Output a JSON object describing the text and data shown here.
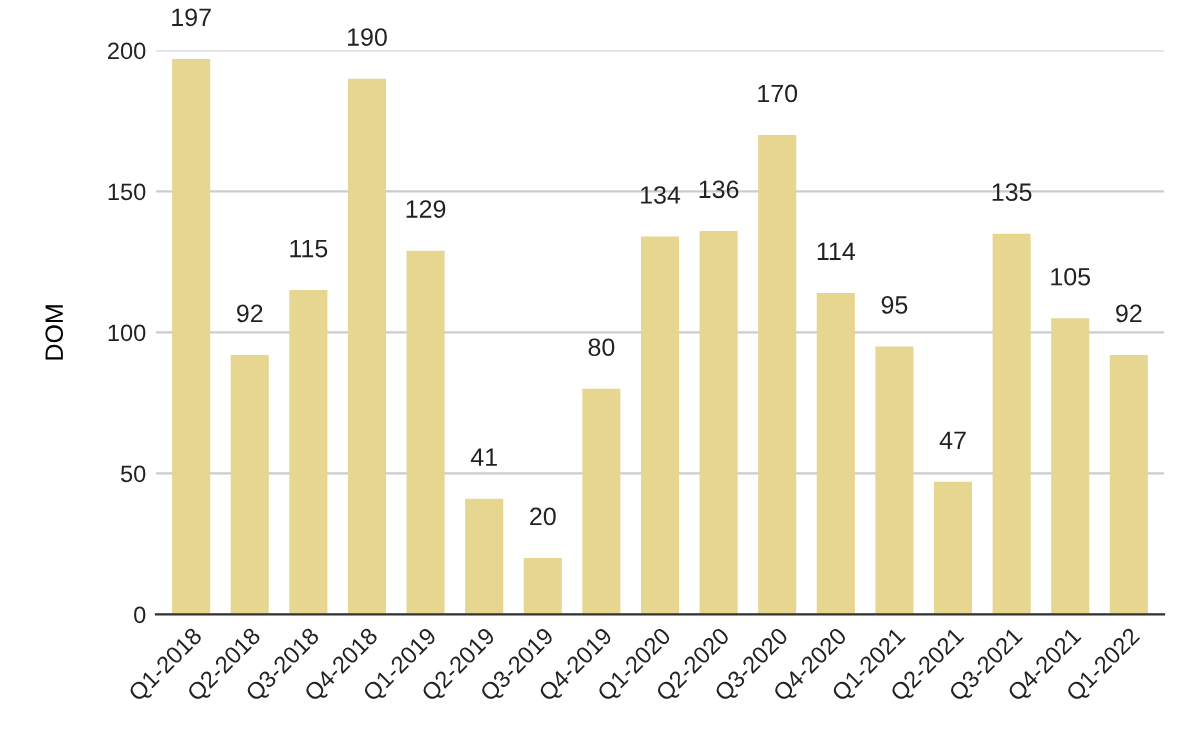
{
  "chart_data": {
    "type": "bar",
    "ylabel": "DOM",
    "categories": [
      "Q1-2018",
      "Q2-2018",
      "Q3-2018",
      "Q4-2018",
      "Q1-2019",
      "Q2-2019",
      "Q3-2019",
      "Q4-2019",
      "Q1-2020",
      "Q2-2020",
      "Q3-2020",
      "Q4-2020",
      "Q1-2021",
      "Q2-2021",
      "Q3-2021",
      "Q4-2021",
      "Q1-2022"
    ],
    "values": [
      197,
      92,
      115,
      190,
      129,
      41,
      20,
      80,
      134,
      136,
      170,
      114,
      95,
      47,
      135,
      105,
      92
    ],
    "color": "#e6d690",
    "ylim": [
      0,
      200
    ],
    "yticks": [
      0,
      50,
      100,
      150,
      200
    ],
    "grid": "y",
    "data_labels": true
  }
}
